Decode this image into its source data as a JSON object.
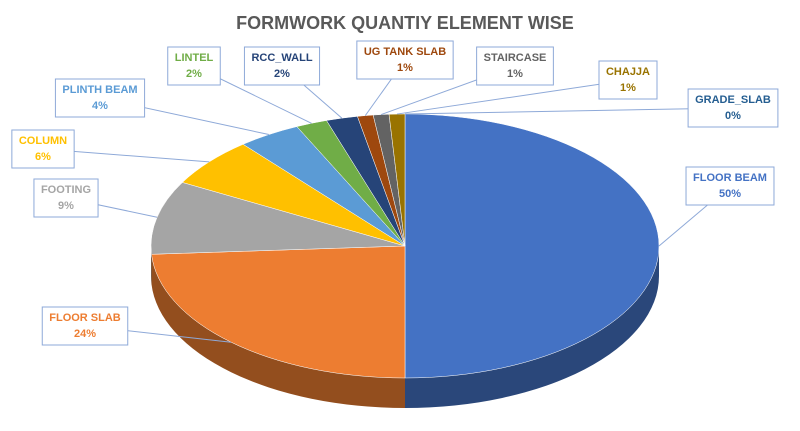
{
  "chart_data": {
    "type": "pie3d",
    "title": "FORMWORK QUANTIY ELEMENT WISE",
    "categories": [
      "FLOOR BEAM",
      "FLOOR SLAB",
      "FOOTING",
      "COLUMN",
      "PLINTH BEAM",
      "LINTEL",
      "RCC_WALL",
      "UG TANK SLAB",
      "STAIRCASE",
      "CHAJJA",
      "GRADE_SLAB"
    ],
    "values": [
      50,
      24,
      9,
      6,
      4,
      2,
      2,
      1,
      1,
      1,
      0
    ],
    "value_labels": [
      "50%",
      "24%",
      "9%",
      "6%",
      "4%",
      "2%",
      "2%",
      "1%",
      "1%",
      "1%",
      "0%"
    ],
    "colors": [
      "#4472c4",
      "#ed7d31",
      "#a5a5a5",
      "#ffc000",
      "#5b9bd5",
      "#70ad47",
      "#264478",
      "#9e480e",
      "#636363",
      "#997300",
      "#255e91"
    ]
  }
}
